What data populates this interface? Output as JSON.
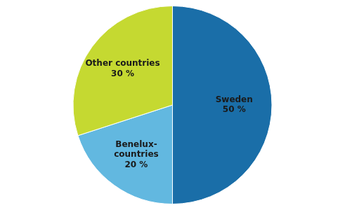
{
  "chart_data": {
    "type": "pie",
    "categories": [
      "Sweden",
      "Benelux-\ncountries",
      "Other countries"
    ],
    "values": [
      50,
      20,
      30
    ],
    "value_labels": [
      "50 %",
      "20 %",
      "30 %"
    ],
    "colors": [
      "#1a6ea8",
      "#62b8e0",
      "#c5d931"
    ],
    "data_labels": true
  }
}
